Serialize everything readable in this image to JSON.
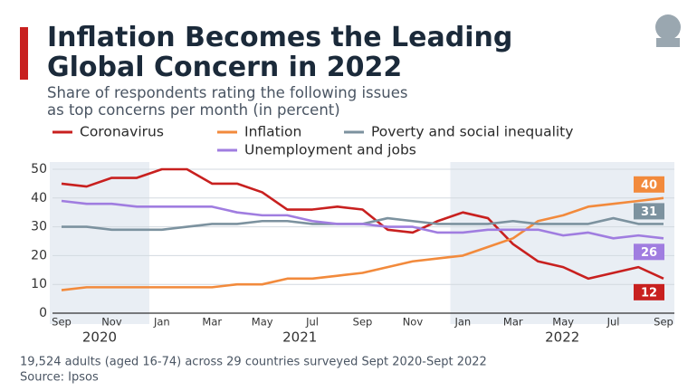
{
  "chart_data": {
    "type": "line",
    "title": [
      "Inflation Becomes the Leading",
      "Global Concern in 2022"
    ],
    "subtitle": [
      "Share of respondents rating the following issues",
      "as top concerns per month (in percent)"
    ],
    "categories": [
      "Sep",
      null,
      "Nov",
      null,
      "Jan",
      null,
      "Mar",
      null,
      "May",
      null,
      "Jul",
      null,
      "Sep",
      null,
      "Nov",
      null,
      "Jan",
      null,
      "Mar",
      null,
      "May",
      null,
      "Jul",
      null,
      "Sep"
    ],
    "year_labels": [
      "2020",
      "2021",
      "2022"
    ],
    "ylim": [
      0,
      50
    ],
    "yticks": [
      0,
      10,
      20,
      30,
      40,
      50
    ],
    "grid": true,
    "series": [
      {
        "name": "Coronavirus",
        "color": "#c8201f",
        "values": [
          45,
          44,
          47,
          47,
          50,
          50,
          45,
          45,
          42,
          36,
          36,
          37,
          36,
          29,
          28,
          32,
          35,
          33,
          24,
          18,
          16,
          12,
          14,
          16,
          12
        ]
      },
      {
        "name": "Inflation",
        "color": "#f28a3c",
        "values": [
          8,
          9,
          9,
          9,
          9,
          9,
          9,
          10,
          10,
          12,
          12,
          13,
          14,
          16,
          18,
          19,
          20,
          23,
          26,
          32,
          34,
          37,
          38,
          39,
          40
        ]
      },
      {
        "name": "Poverty and social inequality",
        "color": "#7c929f",
        "values": [
          30,
          30,
          29,
          29,
          29,
          30,
          31,
          31,
          32,
          32,
          31,
          31,
          31,
          33,
          32,
          31,
          31,
          31,
          32,
          31,
          31,
          31,
          33,
          31,
          31
        ]
      },
      {
        "name": "Unemployment and jobs",
        "color": "#a07de0",
        "values": [
          39,
          38,
          38,
          37,
          37,
          37,
          37,
          35,
          34,
          34,
          32,
          31,
          31,
          30,
          30,
          28,
          28,
          29,
          29,
          29,
          27,
          28,
          26,
          27,
          26
        ]
      }
    ],
    "footnote": [
      "19,524 adults (aged 16-74) across 29 countries surveyed Sept 2020-Sept 2022",
      "Source: Ipsos"
    ]
  }
}
